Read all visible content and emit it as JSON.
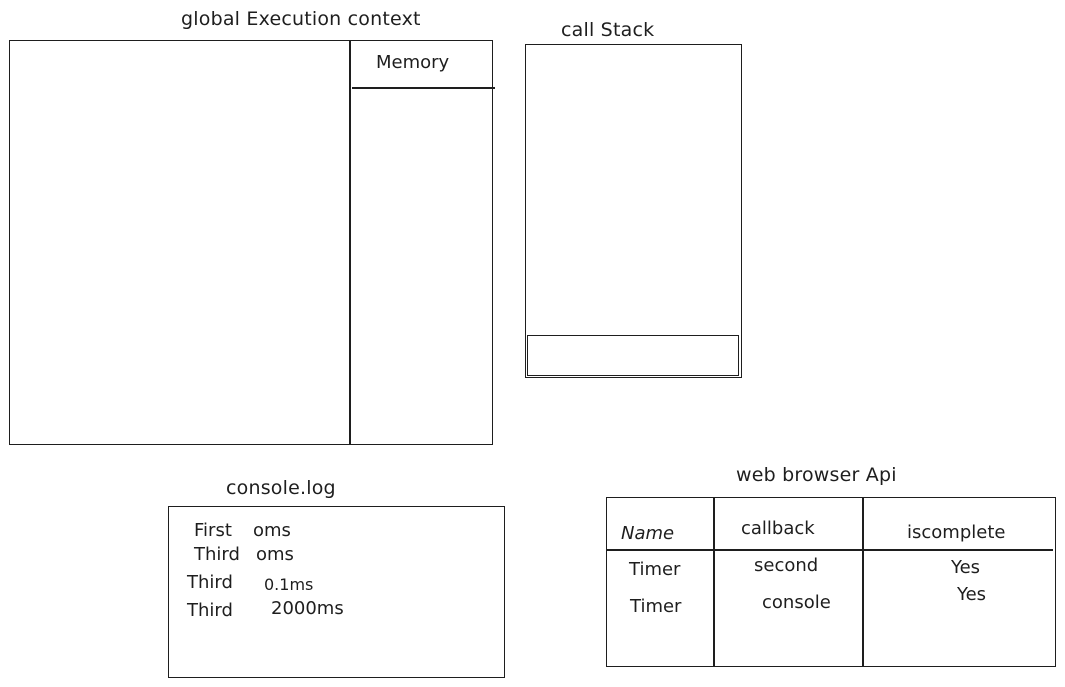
{
  "gec": {
    "title": "global Execution context",
    "memory_label": "Memory"
  },
  "call_stack": {
    "title": "call Stack"
  },
  "console": {
    "title": "console.log",
    "lines": [
      {
        "name": "First",
        "time": "oms"
      },
      {
        "name": "Third",
        "time": "oms"
      },
      {
        "name": "Third",
        "time": "0.1ms"
      },
      {
        "name": "Third",
        "time": "2000ms"
      }
    ]
  },
  "web_api": {
    "title": "web browser Api",
    "headers": [
      "Name",
      "callback",
      "iscomplete"
    ],
    "rows": [
      [
        "Timer",
        "second",
        "Yes"
      ],
      [
        "Timer",
        "console",
        "Yes"
      ]
    ]
  }
}
